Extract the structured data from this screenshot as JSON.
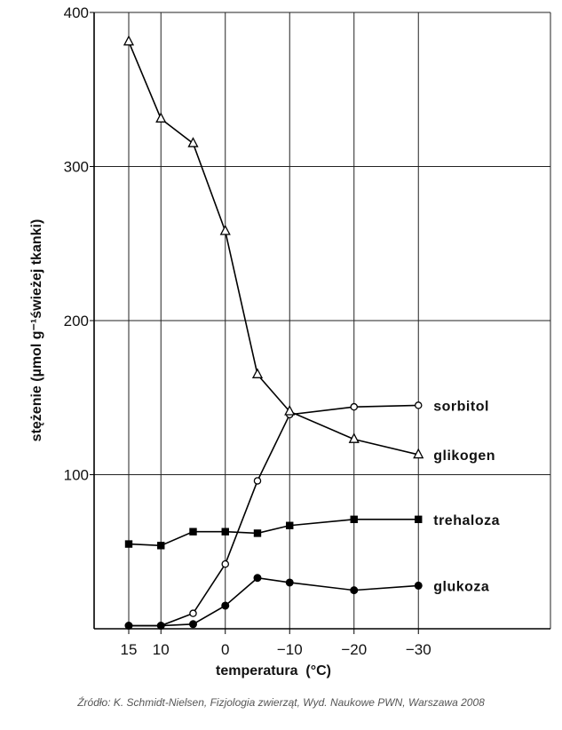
{
  "chart_data": {
    "type": "line",
    "xlabel": "temperatura  (°C)",
    "ylabel": "stężenie (µmol g⁻¹świeżej tkanki)",
    "xlim": [
      17,
      -35
    ],
    "ylim": [
      0,
      400
    ],
    "x_ticks": [
      15,
      10,
      0,
      -10,
      -20,
      -30
    ],
    "x_tick_labels": [
      "15",
      "10",
      "0",
      "−10",
      "−20",
      "−30"
    ],
    "y_ticks": [
      100,
      200,
      300,
      400
    ],
    "y_tick_labels": [
      "100",
      "200",
      "300",
      "400"
    ],
    "grid": true,
    "series": [
      {
        "name": "sorbitol",
        "marker": "open-circle",
        "x": [
          15,
          10,
          5,
          0,
          -5,
          -10,
          -20,
          -30
        ],
        "y": [
          2,
          2,
          10,
          42,
          96,
          139,
          144,
          145
        ]
      },
      {
        "name": "glikogen",
        "marker": "open-triangle",
        "x": [
          15,
          10,
          5,
          0,
          -5,
          -10,
          -20,
          -30
        ],
        "y": [
          381,
          331,
          315,
          258,
          165,
          141,
          123,
          113
        ]
      },
      {
        "name": "trehaloza",
        "marker": "filled-square",
        "x": [
          15,
          10,
          5,
          0,
          -5,
          -10,
          -20,
          -30
        ],
        "y": [
          55,
          54,
          63,
          63,
          62,
          67,
          71,
          71
        ]
      },
      {
        "name": "glukoza",
        "marker": "filled-circle",
        "x": [
          15,
          10,
          5,
          0,
          -5,
          -10,
          -20,
          -30
        ],
        "y": [
          2,
          2,
          3,
          15,
          33,
          30,
          25,
          28
        ]
      }
    ]
  },
  "source_note": "Źródło: K. Schmidt-Nielsen, Fizjologia zwierząt, Wyd. Naukowe PWN, Warszawa 2008"
}
